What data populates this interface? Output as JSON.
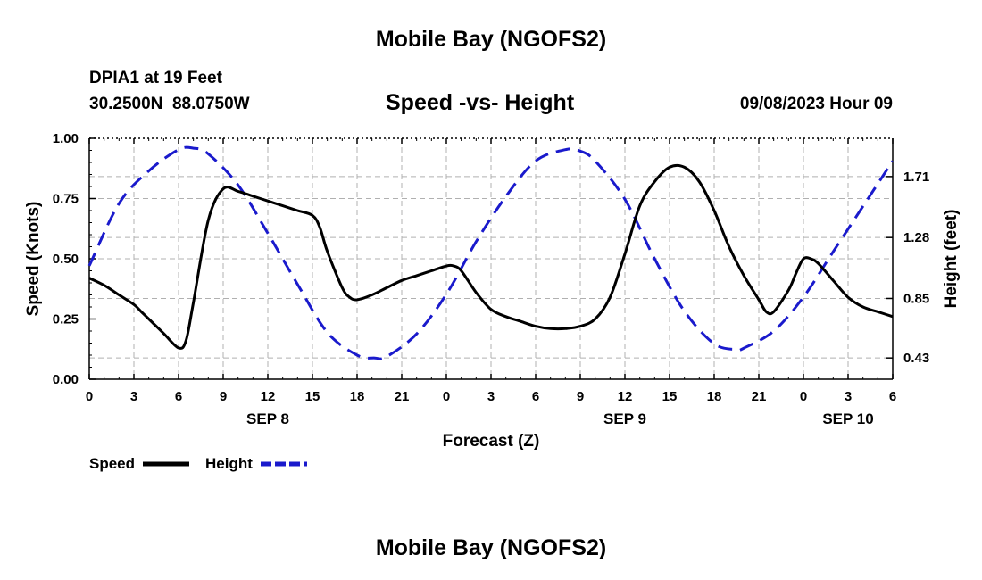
{
  "header": {
    "title": "Mobile Bay (NGOFS2)",
    "station": "DPIA1 at 19 Feet",
    "coords": "30.2500N  88.0750W",
    "subtitle": "Speed -vs- Height",
    "timestamp": "09/08/2023 Hour 09"
  },
  "footer": {
    "title": "Mobile Bay (NGOFS2)"
  },
  "legend": {
    "speed_label": "Speed",
    "height_label": "Height"
  },
  "colors": {
    "speed": "#000000",
    "height": "#1a1acc",
    "grid": "#b0b0b0"
  },
  "chart_data": {
    "type": "line",
    "xlabel": "Forecast (Z)",
    "ylabel_left": "Speed (Knots)",
    "ylabel_right": "Height (feet)",
    "xlim": [
      0,
      54
    ],
    "ylim_left": [
      0,
      1.0
    ],
    "ylim_right": [
      0.28,
      1.98
    ],
    "x_ticks": [
      0,
      3,
      6,
      9,
      12,
      15,
      18,
      21,
      24,
      27,
      30,
      33,
      36,
      39,
      42,
      45,
      48,
      51,
      54
    ],
    "x_tick_labels": [
      "0",
      "3",
      "6",
      "9",
      "12",
      "15",
      "18",
      "21",
      "0",
      "3",
      "6",
      "9",
      "12",
      "15",
      "18",
      "21",
      "0",
      "3",
      "6"
    ],
    "date_labels": [
      {
        "x": 12,
        "label": "SEP 8"
      },
      {
        "x": 36,
        "label": "SEP 9"
      },
      {
        "x": 51,
        "label": "SEP 10"
      }
    ],
    "y_ticks_left": [
      0.0,
      0.25,
      0.5,
      0.75,
      1.0
    ],
    "y_tick_labels_left": [
      "0.00",
      "0.25",
      "0.50",
      "0.75",
      "1.00"
    ],
    "y_ticks_right": [
      0.43,
      0.85,
      1.28,
      1.71
    ],
    "y_tick_labels_right": [
      "0.43",
      "0.85",
      "1.28",
      "1.71"
    ],
    "grid": true,
    "legend_position": "bottom-left",
    "series": [
      {
        "name": "Speed",
        "axis": "left",
        "style": "solid",
        "x": [
          0,
          1,
          2,
          3,
          3.5,
          4,
          5,
          6,
          6.5,
          7,
          8,
          9,
          10,
          11,
          12,
          13,
          14,
          15,
          15.5,
          16,
          17,
          17.5,
          18,
          19,
          20,
          21,
          22,
          23,
          24,
          24.5,
          25,
          26,
          27,
          28,
          29,
          30,
          31,
          32,
          33,
          34,
          35,
          36,
          37,
          38,
          39,
          40,
          41,
          42,
          43,
          44,
          45,
          45.5,
          46,
          47,
          47.5,
          48,
          48.5,
          49,
          50,
          51,
          52,
          53,
          54
        ],
        "values": [
          0.42,
          0.39,
          0.35,
          0.31,
          0.28,
          0.25,
          0.19,
          0.13,
          0.16,
          0.32,
          0.66,
          0.79,
          0.78,
          0.76,
          0.74,
          0.72,
          0.7,
          0.68,
          0.63,
          0.53,
          0.38,
          0.34,
          0.33,
          0.35,
          0.38,
          0.41,
          0.43,
          0.45,
          0.47,
          0.47,
          0.45,
          0.36,
          0.29,
          0.26,
          0.24,
          0.22,
          0.21,
          0.21,
          0.22,
          0.25,
          0.34,
          0.52,
          0.72,
          0.82,
          0.88,
          0.88,
          0.82,
          0.7,
          0.55,
          0.43,
          0.33,
          0.28,
          0.28,
          0.37,
          0.44,
          0.5,
          0.5,
          0.48,
          0.41,
          0.34,
          0.3,
          0.28,
          0.26
        ]
      },
      {
        "name": "Height",
        "axis": "right",
        "style": "dashed",
        "x": [
          0,
          2,
          4,
          6,
          7,
          8,
          10,
          12,
          14,
          16,
          18,
          19.2,
          20,
          22,
          24,
          26,
          28,
          30,
          32,
          33,
          34,
          36,
          38,
          40,
          42,
          43.5,
          44,
          46,
          48,
          50,
          52,
          54
        ],
        "values": [
          1.08,
          1.52,
          1.75,
          1.9,
          1.91,
          1.87,
          1.65,
          1.31,
          0.95,
          0.61,
          0.45,
          0.43,
          0.44,
          0.6,
          0.88,
          1.25,
          1.57,
          1.82,
          1.9,
          1.89,
          1.82,
          1.55,
          1.13,
          0.76,
          0.53,
          0.49,
          0.5,
          0.62,
          0.86,
          1.18,
          1.5,
          1.82
        ]
      }
    ]
  }
}
